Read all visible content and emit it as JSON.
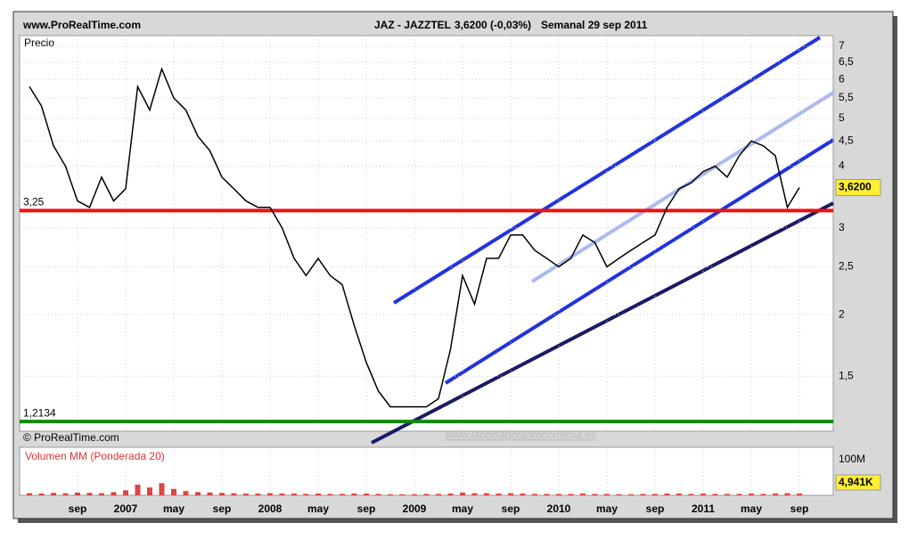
{
  "chart_data": [
    {
      "type": "line",
      "source": "www.ProRealTime.com",
      "title": "JAZ - JAZZTEL",
      "quote": "3,6200 (-0,03%)",
      "period": "Semanal  29 sep 2011",
      "y_label": "Precio",
      "watermark": "© ProRealTime.com",
      "annotation": "www.labolsaporantonomasia.es",
      "log_scale": true,
      "categories": [
        null,
        null,
        null,
        null,
        "sep",
        null,
        null,
        null,
        "2007",
        null,
        null,
        null,
        "may",
        null,
        null,
        null,
        "sep",
        null,
        null,
        null,
        "2008",
        null,
        null,
        null,
        "may",
        null,
        null,
        null,
        "sep",
        null,
        null,
        null,
        "2009",
        null,
        null,
        null,
        "may",
        null,
        null,
        null,
        "sep",
        null,
        null,
        null,
        "2010",
        null,
        null,
        null,
        "may",
        null,
        null,
        null,
        "sep",
        null,
        null,
        null,
        "2011",
        null,
        null,
        null,
        "may",
        null,
        null,
        null,
        "sep"
      ],
      "series": [
        {
          "color": "#000000",
          "values": [
            5.8,
            5.3,
            4.4,
            4.0,
            3.4,
            3.3,
            3.8,
            3.4,
            3.6,
            5.8,
            5.2,
            6.3,
            5.5,
            5.2,
            4.6,
            4.3,
            3.8,
            3.6,
            3.4,
            3.3,
            3.3,
            3.0,
            2.6,
            2.4,
            2.6,
            2.4,
            2.3,
            1.9,
            1.6,
            1.4,
            1.3,
            1.3,
            1.3,
            1.3,
            1.35,
            1.7,
            2.4,
            2.1,
            2.6,
            2.6,
            2.9,
            2.9,
            2.7,
            2.6,
            2.5,
            2.6,
            2.9,
            2.8,
            2.5,
            2.6,
            2.7,
            2.8,
            2.9,
            3.3,
            3.6,
            3.7,
            3.9,
            4.0,
            3.8,
            4.2,
            4.5,
            4.4,
            4.2,
            3.3,
            3.62
          ]
        }
      ],
      "hlines": [
        {
          "value": 3.25,
          "label": "3,25",
          "color": "#ee1111"
        },
        {
          "value": 1.2134,
          "label": "1,2134",
          "color": "#118811"
        }
      ],
      "last_price": {
        "value": 3.62,
        "label": "3,6200"
      },
      "ylim": [
        1.16,
        7.36
      ],
      "yticks": [
        7,
        {
          "value": 6.5,
          "label": "6,5"
        },
        6,
        {
          "value": 5.5,
          "label": "5,5"
        },
        5,
        {
          "value": 4.5,
          "label": "4,5"
        },
        4,
        3,
        {
          "value": 2.5,
          "label": "2,5"
        },
        2,
        {
          "value": 1.5,
          "label": "1,5"
        }
      ],
      "grid": true
    },
    {
      "type": "bar",
      "title": "Volumen MM (Ponderada 20)",
      "last_value_label": "4,941K",
      "color": "#dd4444",
      "values": [
        6,
        5,
        7,
        6,
        8,
        7,
        6,
        9,
        14,
        30,
        22,
        34,
        18,
        12,
        9,
        8,
        7,
        6,
        5,
        5,
        6,
        5,
        5,
        4,
        5,
        4,
        4,
        5,
        5,
        4,
        3,
        3,
        3,
        4,
        4,
        5,
        8,
        6,
        6,
        5,
        6,
        5,
        4,
        4,
        4,
        4,
        5,
        4,
        4,
        3,
        3,
        4,
        4,
        5,
        5,
        4,
        5,
        4,
        4,
        4,
        5,
        4,
        5,
        6,
        5
      ],
      "ylim": [
        0,
        100
      ],
      "yticks": [
        {
          "value": 100,
          "label": "100M"
        }
      ]
    }
  ]
}
